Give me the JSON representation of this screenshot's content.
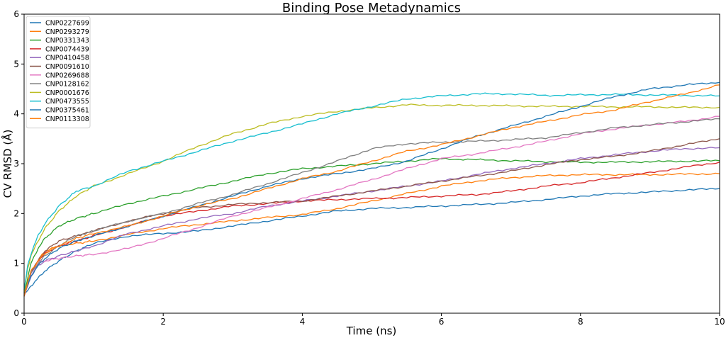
{
  "chart_data": {
    "type": "line",
    "title": "Binding Pose Metadynamics",
    "xlabel": "Time (ns)",
    "ylabel": "CV RMSD (Å)",
    "xlim": [
      0,
      10
    ],
    "ylim": [
      0,
      6
    ],
    "xticks": [
      0,
      2,
      4,
      6,
      8,
      10
    ],
    "yticks": [
      0,
      1,
      2,
      3,
      4,
      5,
      6
    ],
    "grid": false,
    "legend_position": "top-left",
    "x": [
      0,
      0.05,
      0.1,
      0.2,
      0.3,
      0.5,
      0.75,
      1,
      1.5,
      2,
      2.5,
      3,
      3.5,
      4,
      4.5,
      5,
      5.5,
      6,
      6.5,
      7,
      7.5,
      8,
      8.5,
      9,
      9.5,
      10
    ],
    "series": [
      {
        "name": "CNP0227699",
        "color": "#1f77b4",
        "values": [
          0.35,
          0.45,
          0.55,
          0.7,
          0.85,
          1.05,
          1.25,
          1.4,
          1.55,
          1.6,
          1.65,
          1.75,
          1.85,
          1.95,
          2.05,
          2.1,
          2.12,
          2.15,
          2.18,
          2.22,
          2.28,
          2.35,
          2.4,
          2.43,
          2.47,
          2.5
        ]
      },
      {
        "name": "CNP0293279",
        "color": "#ff7f0e",
        "values": [
          0.35,
          0.6,
          0.8,
          1.05,
          1.25,
          1.35,
          1.4,
          1.45,
          1.58,
          1.7,
          1.78,
          1.85,
          1.92,
          1.98,
          2.1,
          2.25,
          2.4,
          2.55,
          2.65,
          2.72,
          2.76,
          2.78,
          2.78,
          2.78,
          2.79,
          2.8
        ]
      },
      {
        "name": "CNP0331343",
        "color": "#2ca02c",
        "values": [
          0.4,
          0.7,
          1.0,
          1.3,
          1.5,
          1.75,
          1.9,
          2.0,
          2.2,
          2.35,
          2.5,
          2.65,
          2.8,
          2.9,
          2.95,
          3.0,
          3.05,
          3.1,
          3.08,
          3.06,
          3.04,
          3.03,
          3.03,
          3.04,
          3.05,
          3.06
        ]
      },
      {
        "name": "CNP0074439",
        "color": "#d62728",
        "values": [
          0.35,
          0.55,
          0.8,
          1.05,
          1.2,
          1.35,
          1.45,
          1.55,
          1.75,
          1.95,
          2.05,
          2.15,
          2.2,
          2.25,
          2.28,
          2.3,
          2.32,
          2.35,
          2.38,
          2.45,
          2.55,
          2.62,
          2.72,
          2.82,
          2.93,
          3.03
        ]
      },
      {
        "name": "CNP0410458",
        "color": "#9467bd",
        "values": [
          0.35,
          0.55,
          0.75,
          0.95,
          1.05,
          1.15,
          1.25,
          1.35,
          1.6,
          1.75,
          1.9,
          2.0,
          2.15,
          2.25,
          2.35,
          2.45,
          2.55,
          2.65,
          2.78,
          2.9,
          3.0,
          3.1,
          3.18,
          3.25,
          3.3,
          3.32
        ]
      },
      {
        "name": "CNP0091610",
        "color": "#8c564b",
        "values": [
          0.35,
          0.6,
          0.85,
          1.05,
          1.25,
          1.45,
          1.55,
          1.65,
          1.85,
          2.0,
          2.12,
          2.18,
          2.22,
          2.25,
          2.35,
          2.45,
          2.55,
          2.65,
          2.75,
          2.85,
          2.98,
          3.08,
          3.15,
          3.25,
          3.38,
          3.5
        ]
      },
      {
        "name": "CNP0269688",
        "color": "#e377c2",
        "values": [
          0.35,
          0.55,
          0.8,
          1.0,
          1.05,
          1.1,
          1.15,
          1.18,
          1.3,
          1.5,
          1.72,
          1.95,
          2.12,
          2.3,
          2.48,
          2.68,
          2.9,
          3.1,
          3.2,
          3.32,
          3.45,
          3.6,
          3.7,
          3.78,
          3.85,
          3.95
        ]
      },
      {
        "name": "CNP0128162",
        "color": "#7f7f7f",
        "values": [
          0.35,
          0.6,
          0.8,
          1.0,
          1.15,
          1.35,
          1.55,
          1.65,
          1.85,
          2.0,
          2.2,
          2.38,
          2.6,
          2.82,
          3.05,
          3.3,
          3.4,
          3.43,
          3.45,
          3.48,
          3.52,
          3.62,
          3.72,
          3.78,
          3.84,
          3.9
        ]
      },
      {
        "name": "CNP0001676",
        "color": "#bcbd22",
        "values": [
          0.4,
          0.9,
          1.15,
          1.45,
          1.7,
          2.05,
          2.35,
          2.55,
          2.8,
          3.05,
          3.35,
          3.6,
          3.8,
          3.95,
          4.05,
          4.12,
          4.18,
          4.17,
          4.17,
          4.16,
          4.15,
          4.15,
          4.14,
          4.14,
          4.13,
          4.13
        ]
      },
      {
        "name": "CNP0473555",
        "color": "#17becf",
        "values": [
          0.45,
          0.95,
          1.2,
          1.55,
          1.8,
          2.15,
          2.45,
          2.55,
          2.85,
          3.05,
          3.25,
          3.45,
          3.62,
          3.8,
          4.0,
          4.15,
          4.3,
          4.36,
          4.4,
          4.4,
          4.37,
          4.38,
          4.39,
          4.38,
          4.37,
          4.36
        ]
      },
      {
        "name": "CNP0375461",
        "color": "#1f77b4",
        "values": [
          0.35,
          0.55,
          0.75,
          0.95,
          1.1,
          1.3,
          1.45,
          1.55,
          1.75,
          1.95,
          2.15,
          2.35,
          2.55,
          2.7,
          2.8,
          2.9,
          3.05,
          3.3,
          3.55,
          3.75,
          3.95,
          4.15,
          4.35,
          4.5,
          4.58,
          4.63
        ]
      },
      {
        "name": "CNP0113308",
        "color": "#ff7f0e",
        "values": [
          0.35,
          0.6,
          0.85,
          1.05,
          1.2,
          1.35,
          1.5,
          1.6,
          1.75,
          1.95,
          2.15,
          2.3,
          2.5,
          2.7,
          2.85,
          3.05,
          3.25,
          3.38,
          3.55,
          3.72,
          3.85,
          3.98,
          4.08,
          4.25,
          4.4,
          4.58
        ]
      }
    ]
  }
}
